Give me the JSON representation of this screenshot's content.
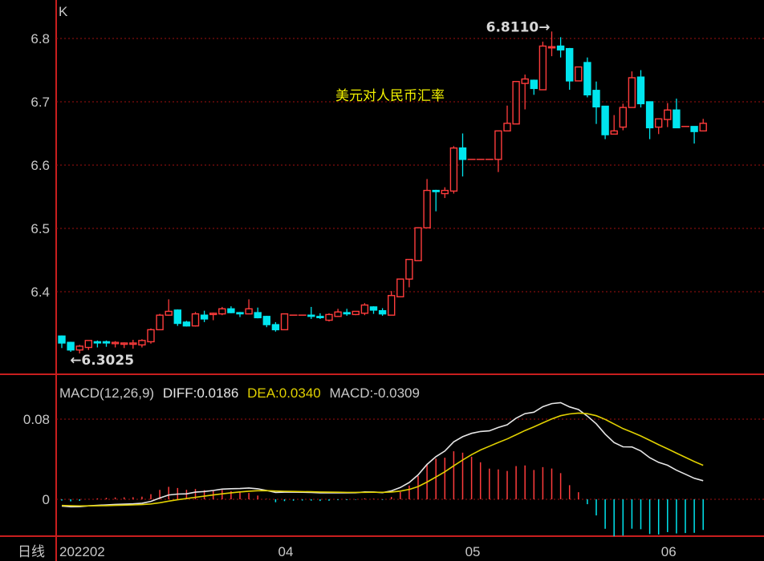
{
  "chart_data": [
    {
      "type": "candlestick",
      "panel_label": "K",
      "title": "美元对人民币汇率",
      "ylim": [
        6.27,
        6.85
      ],
      "yticks": [
        6.4,
        6.5,
        6.6,
        6.7,
        6.8
      ],
      "ytick_labels": [
        "6.4",
        "6.5",
        "6.6",
        "6.7",
        "6.8"
      ],
      "grid": true,
      "colors": {
        "up": "#ff3c3c",
        "down": "#00e5ee",
        "grid": "#a01010",
        "frame": "#c81e1e",
        "title": "#f0f000"
      },
      "max_annotation": "6.8110→",
      "min_annotation": "←6.3025",
      "ohlc": [
        [
          6.33,
          6.331,
          6.311,
          6.319
        ],
        [
          6.32,
          6.321,
          6.305,
          6.308
        ],
        [
          6.308,
          6.316,
          6.3025,
          6.314
        ],
        [
          6.312,
          6.323,
          6.308,
          6.323
        ],
        [
          6.321,
          6.323,
          6.312,
          6.32
        ],
        [
          6.321,
          6.323,
          6.313,
          6.32
        ],
        [
          6.318,
          6.322,
          6.312,
          6.32
        ],
        [
          6.317,
          6.32,
          6.311,
          6.319
        ],
        [
          6.317,
          6.324,
          6.31,
          6.319
        ],
        [
          6.316,
          6.325,
          6.312,
          6.323
        ],
        [
          6.321,
          6.342,
          6.318,
          6.34
        ],
        [
          6.34,
          6.365,
          6.34,
          6.363
        ],
        [
          6.363,
          6.388,
          6.362,
          6.369
        ],
        [
          6.371,
          6.372,
          6.346,
          6.35
        ],
        [
          6.352,
          6.354,
          6.345,
          6.346
        ],
        [
          6.346,
          6.368,
          6.345,
          6.365
        ],
        [
          6.363,
          6.37,
          6.352,
          6.357
        ],
        [
          6.364,
          6.367,
          6.355,
          6.366
        ],
        [
          6.365,
          6.376,
          6.363,
          6.373
        ],
        [
          6.373,
          6.377,
          6.366,
          6.367
        ],
        [
          6.367,
          6.368,
          6.36,
          6.366
        ],
        [
          6.365,
          6.388,
          6.365,
          6.373
        ],
        [
          6.367,
          6.375,
          6.358,
          6.359
        ],
        [
          6.361,
          6.362,
          6.344,
          6.348
        ],
        [
          6.348,
          6.352,
          6.337,
          6.34
        ],
        [
          6.34,
          6.365,
          6.34,
          6.365
        ],
        [
          6.363,
          6.363,
          6.363,
          6.363
        ],
        [
          6.363,
          6.363,
          6.363,
          6.363
        ],
        [
          6.363,
          6.376,
          6.357,
          6.362
        ],
        [
          6.361,
          6.366,
          6.357,
          6.36
        ],
        [
          6.355,
          6.366,
          6.353,
          6.364
        ],
        [
          6.361,
          6.373,
          6.36,
          6.368
        ],
        [
          6.367,
          6.373,
          6.362,
          6.366
        ],
        [
          6.364,
          6.369,
          6.363,
          6.369
        ],
        [
          6.366,
          6.382,
          6.363,
          6.379
        ],
        [
          6.376,
          6.377,
          6.365,
          6.371
        ],
        [
          6.37,
          6.374,
          6.362,
          6.365
        ],
        [
          6.363,
          6.401,
          6.363,
          6.394
        ],
        [
          6.392,
          6.42,
          6.392,
          6.42
        ],
        [
          6.42,
          6.451,
          6.407,
          6.451
        ],
        [
          6.449,
          6.502,
          6.449,
          6.501
        ],
        [
          6.501,
          6.578,
          6.501,
          6.56
        ],
        [
          6.56,
          6.561,
          6.527,
          6.559
        ],
        [
          6.555,
          6.565,
          6.548,
          6.56
        ],
        [
          6.559,
          6.63,
          6.555,
          6.627
        ],
        [
          6.627,
          6.65,
          6.582,
          6.609
        ],
        [
          6.609,
          6.609,
          6.609,
          6.609
        ],
        [
          6.609,
          6.609,
          6.609,
          6.609
        ],
        [
          6.609,
          6.609,
          6.609,
          6.609
        ],
        [
          6.609,
          6.654,
          6.589,
          6.654
        ],
        [
          6.654,
          6.694,
          6.654,
          6.666
        ],
        [
          6.665,
          6.732,
          6.665,
          6.732
        ],
        [
          6.729,
          6.743,
          6.688,
          6.736
        ],
        [
          6.734,
          6.735,
          6.711,
          6.721
        ],
        [
          6.719,
          6.795,
          6.719,
          6.788
        ],
        [
          6.786,
          6.811,
          6.772,
          6.787
        ],
        [
          6.788,
          6.802,
          6.77,
          6.782
        ],
        [
          6.784,
          6.785,
          6.719,
          6.733
        ],
        [
          6.733,
          6.755,
          6.733,
          6.755
        ],
        [
          6.762,
          6.77,
          6.707,
          6.711
        ],
        [
          6.718,
          6.732,
          6.665,
          6.692
        ],
        [
          6.693,
          6.693,
          6.641,
          6.648
        ],
        [
          6.649,
          6.679,
          6.649,
          6.654
        ],
        [
          6.66,
          6.697,
          6.655,
          6.691
        ],
        [
          6.691,
          6.748,
          6.691,
          6.738
        ],
        [
          6.739,
          6.75,
          6.691,
          6.697
        ],
        [
          6.7,
          6.7,
          6.641,
          6.659
        ],
        [
          6.66,
          6.673,
          6.649,
          6.673
        ],
        [
          6.672,
          6.698,
          6.66,
          6.687
        ],
        [
          6.687,
          6.705,
          6.659,
          6.659
        ],
        [
          6.661,
          6.661,
          6.661,
          6.661
        ],
        [
          6.661,
          6.661,
          6.634,
          6.653
        ],
        [
          6.654,
          6.673,
          6.654,
          6.666
        ]
      ]
    },
    {
      "type": "macd",
      "params_label": "MACD(12,26,9)",
      "diff_label": "DIFF:0.0186",
      "dea_label": "DEA:0.0340",
      "macd_label": "MACD:-0.0309",
      "ylim": [
        -0.036,
        0.122
      ],
      "yticks": [
        0,
        0.08
      ],
      "ytick_labels": [
        "0",
        "0.08"
      ],
      "colors": {
        "diff": "#e6e6e6",
        "dea": "#e0d000",
        "pos": "#ff3c3c",
        "neg": "#00e5ee"
      }
    }
  ],
  "x_axis": {
    "period_label": "日线",
    "ticks": [
      {
        "index": 0,
        "label": "202202"
      },
      {
        "index": 25,
        "label": "04"
      },
      {
        "index": 46,
        "label": "05"
      },
      {
        "index": 68,
        "label": "06"
      }
    ]
  }
}
